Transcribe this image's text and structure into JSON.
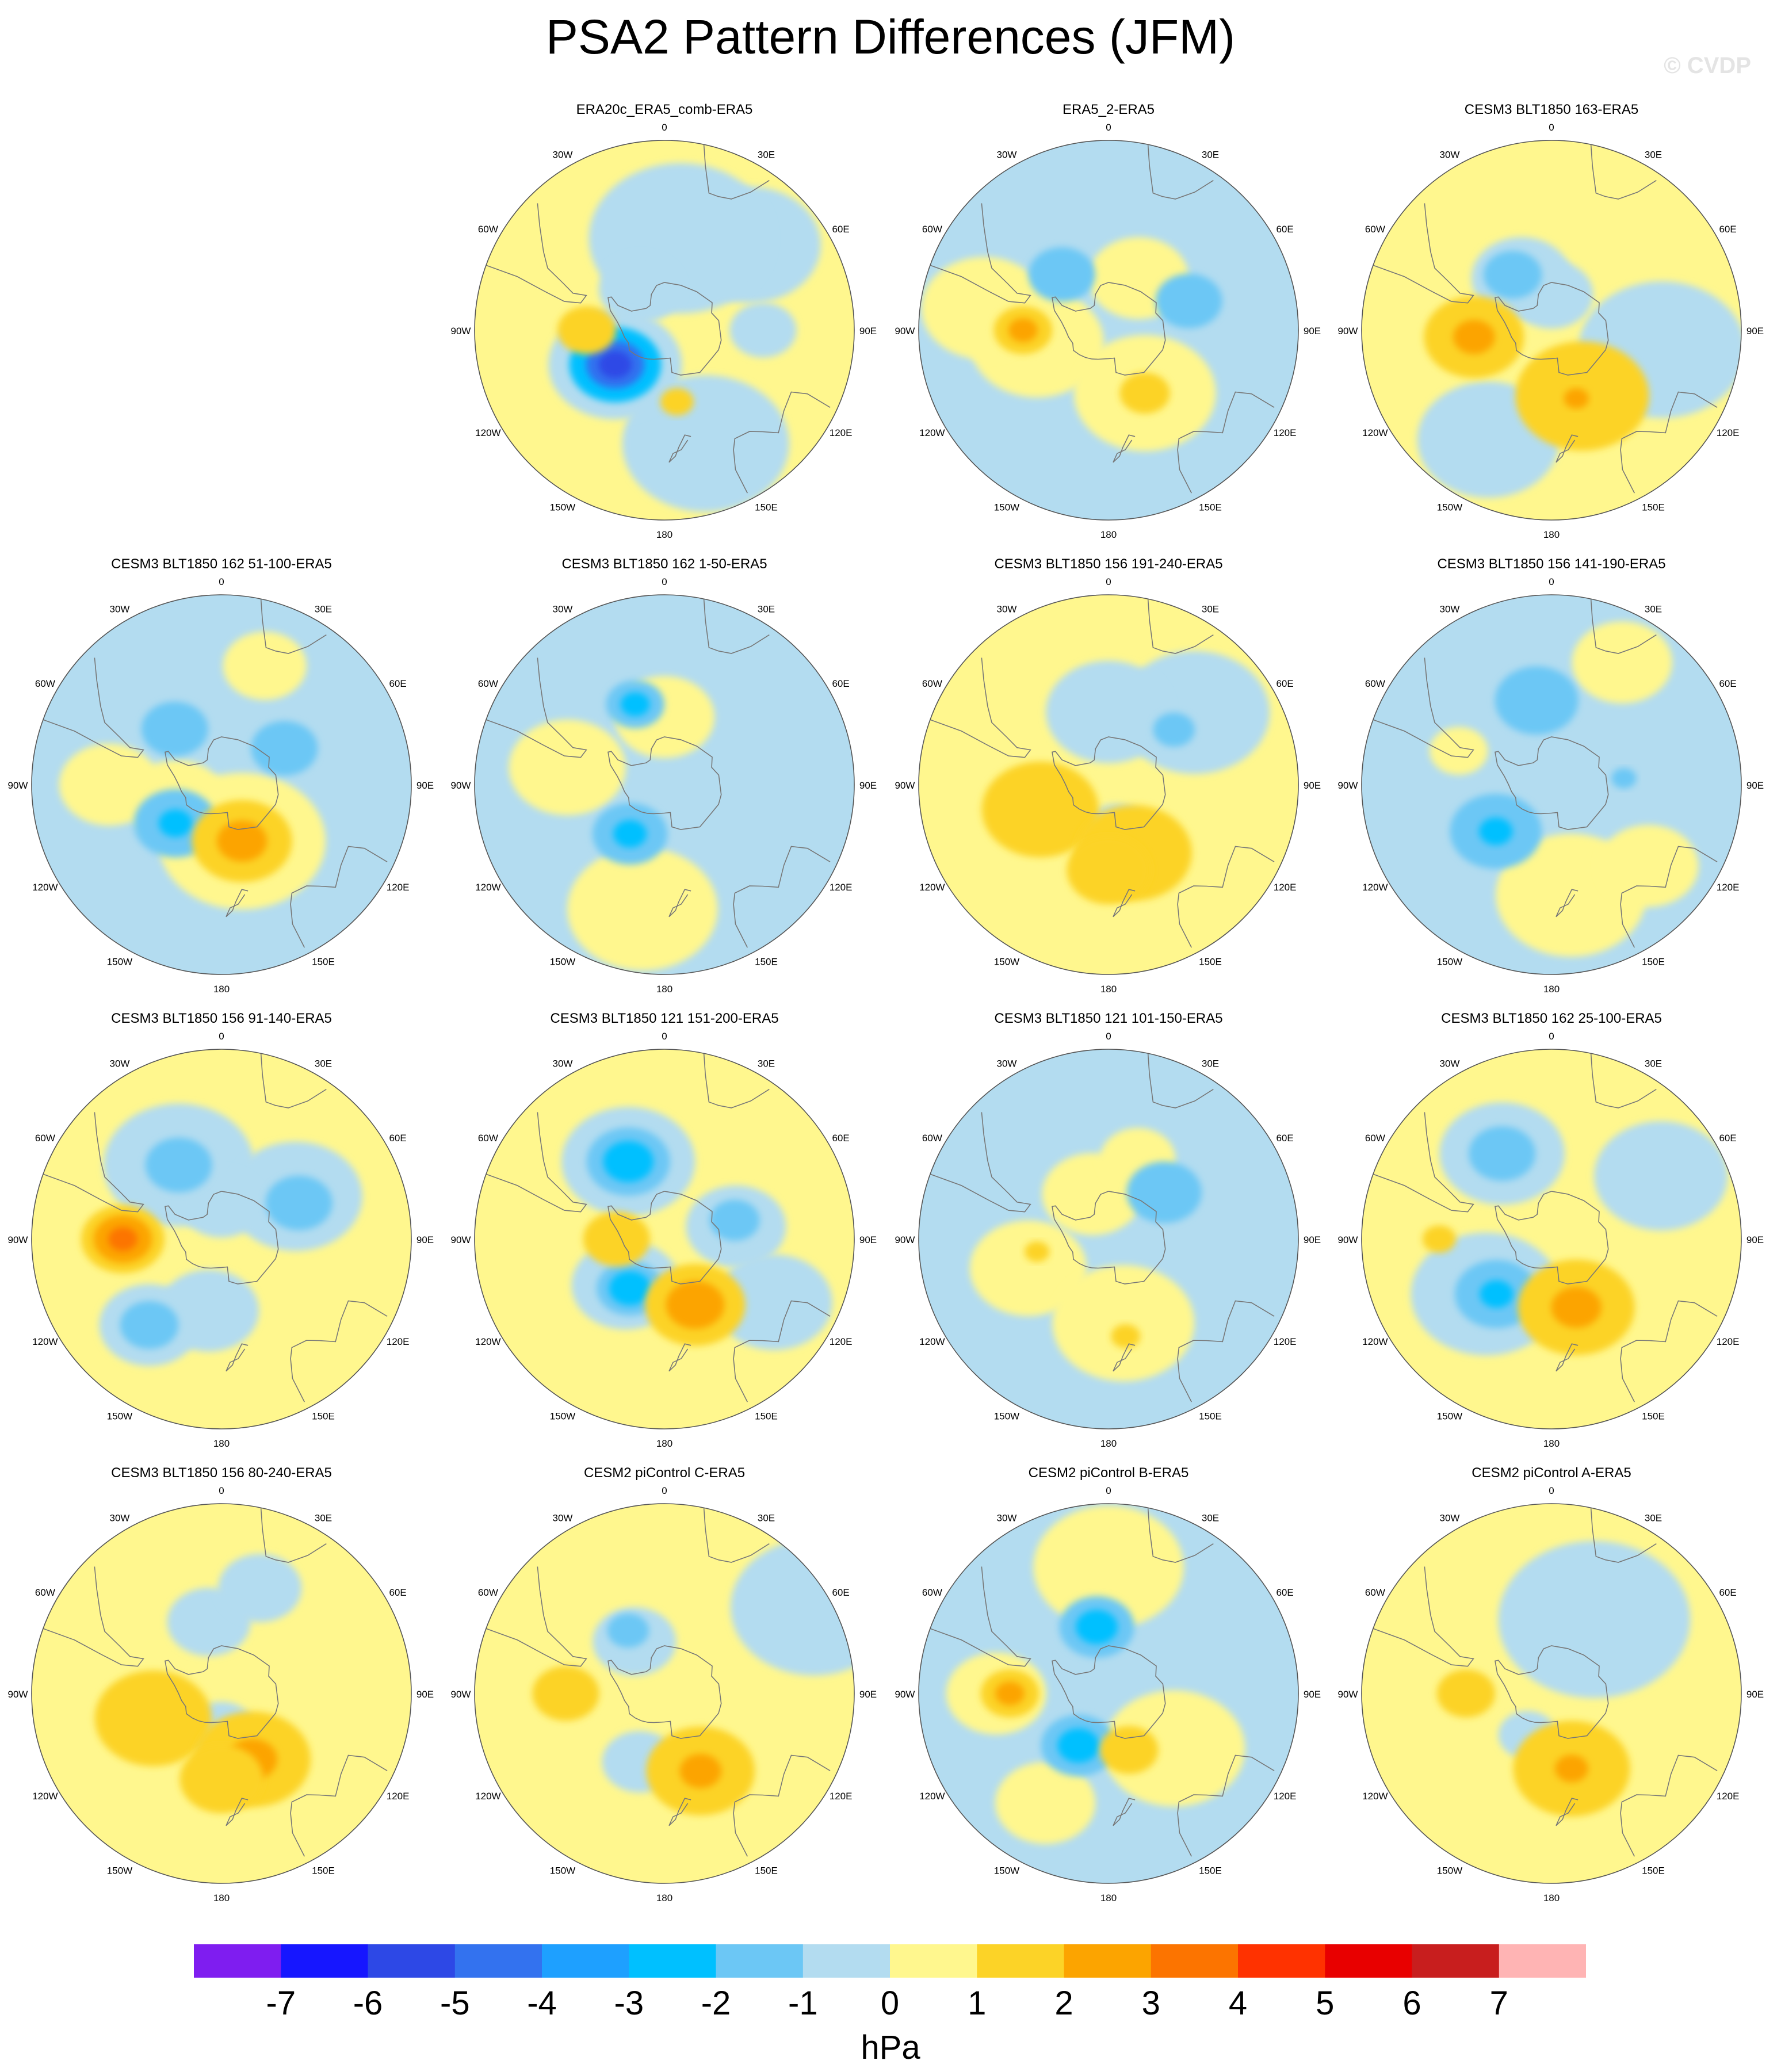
{
  "title": "PSA2 Pattern Differences (JFM)",
  "watermark": "© CVDP",
  "colors": {
    "yellow": "#fff78e",
    "lightblue": "#b3dcf0",
    "ocean_outline": "#777777",
    "levels": [
      "#7f1df0",
      "#1616ff",
      "#2d48e6",
      "#3372ef",
      "#1ea0ff",
      "#00c0ff",
      "#6cc7f5",
      "#b3dcf0",
      "#fff78e",
      "#fcd327",
      "#fca400",
      "#fc7400",
      "#ff3200",
      "#e80000",
      "#c81e1e",
      "#ffb4b4"
    ]
  },
  "map": {
    "projection": "south polar stereographic",
    "lon_labels": [
      "0",
      "30E",
      "60E",
      "90E",
      "120E",
      "150E",
      "180",
      "150W",
      "120W",
      "90W",
      "60W",
      "30W"
    ]
  },
  "panels": [
    {
      "title": "ERA20c_ERA5_comb-ERA5",
      "base": "yellow",
      "blobs": [
        {
          "lon": 45,
          "lat": -42,
          "r": 0.17,
          "v": -0.5
        },
        {
          "lon": 10,
          "lat": -52,
          "r": 0.22,
          "v": -0.5
        },
        {
          "lon": 160,
          "lat": -42,
          "r": 0.2,
          "v": -0.5
        },
        {
          "lon": -30,
          "lat": -70,
          "r": 0.1,
          "v": -0.5
        },
        {
          "lon": 90,
          "lat": -50,
          "r": 0.08,
          "v": -0.5
        },
        {
          "lon": -125,
          "lat": -65,
          "r": 0.16,
          "v": -0.5
        },
        {
          "lon": -125,
          "lat": -65,
          "r": 0.11,
          "v": -2.5
        },
        {
          "lon": -125,
          "lat": -65,
          "r": 0.07,
          "v": -4.5
        },
        {
          "lon": -125,
          "lat": -65,
          "r": 0.04,
          "v": -5.5
        },
        {
          "lon": -90,
          "lat": -58,
          "r": 0.07,
          "v": 1.5
        },
        {
          "lon": 170,
          "lat": -60,
          "r": 0.04,
          "v": 1.5
        }
      ]
    },
    {
      "title": "ERA5_2-ERA5",
      "base": "lightblue",
      "blobs": [
        {
          "lon": -100,
          "lat": -60,
          "r": 0.16,
          "v": 0.5
        },
        {
          "lon": 150,
          "lat": -60,
          "r": 0.17,
          "v": 0.5
        },
        {
          "lon": 30,
          "lat": -65,
          "r": 0.12,
          "v": 0.5
        },
        {
          "lon": -80,
          "lat": -40,
          "r": 0.15,
          "v": 0.5
        },
        {
          "lon": -90,
          "lat": -55,
          "r": 0.07,
          "v": 1.5
        },
        {
          "lon": -90,
          "lat": -55,
          "r": 0.035,
          "v": 2.5
        },
        {
          "lon": 150,
          "lat": -60,
          "r": 0.06,
          "v": 1.5
        },
        {
          "lon": -40,
          "lat": -60,
          "r": 0.08,
          "v": -1.5
        },
        {
          "lon": 70,
          "lat": -55,
          "r": 0.08,
          "v": -1.5
        }
      ]
    },
    {
      "title": "CESM3 BLT1850 163-ERA5",
      "base": "yellow",
      "blobs": [
        {
          "lon": 100,
          "lat": -45,
          "r": 0.2,
          "v": -0.5
        },
        {
          "lon": -150,
          "lat": -40,
          "r": 0.17,
          "v": -0.5
        },
        {
          "lon": -30,
          "lat": -65,
          "r": 0.12,
          "v": -0.5
        },
        {
          "lon": 0,
          "lat": -75,
          "r": 0.1,
          "v": -0.5
        },
        {
          "lon": -35,
          "lat": -62,
          "r": 0.07,
          "v": -1.5
        },
        {
          "lon": -95,
          "lat": -58,
          "r": 0.12,
          "v": 1.5
        },
        {
          "lon": -95,
          "lat": -58,
          "r": 0.05,
          "v": 2.5
        },
        {
          "lon": 155,
          "lat": -60,
          "r": 0.16,
          "v": 1.5
        },
        {
          "lon": 160,
          "lat": -60,
          "r": 0.03,
          "v": 2.5
        }
      ]
    },
    {
      "title": "CESM3 BLT1850 162 51-100-ERA5",
      "base": "lightblue",
      "blobs": [
        {
          "lon": -110,
          "lat": -70,
          "r": 0.12,
          "v": 0.5
        },
        {
          "lon": 160,
          "lat": -65,
          "r": 0.2,
          "v": 0.5
        },
        {
          "lon": -90,
          "lat": -45,
          "r": 0.12,
          "v": 0.5
        },
        {
          "lon": 20,
          "lat": -40,
          "r": 0.1,
          "v": 0.5
        },
        {
          "lon": -40,
          "lat": -60,
          "r": 0.08,
          "v": -1.5
        },
        {
          "lon": 60,
          "lat": -60,
          "r": 0.08,
          "v": -1.5
        },
        {
          "lon": -130,
          "lat": -65,
          "r": 0.1,
          "v": -1.5
        },
        {
          "lon": -130,
          "lat": -65,
          "r": 0.04,
          "v": -2.5
        },
        {
          "lon": 160,
          "lat": -65,
          "r": 0.12,
          "v": 1.5
        },
        {
          "lon": 160,
          "lat": -65,
          "r": 0.06,
          "v": 2.5
        }
      ]
    },
    {
      "title": "CESM3 BLT1850 162 1-50-ERA5",
      "base": "lightblue",
      "blobs": [
        {
          "lon": -170,
          "lat": -40,
          "r": 0.18,
          "v": 0.5
        },
        {
          "lon": -80,
          "lat": -50,
          "r": 0.14,
          "v": 0.5
        },
        {
          "lon": 0,
          "lat": -62,
          "r": 0.12,
          "v": 0.5
        },
        {
          "lon": -20,
          "lat": -55,
          "r": 0.07,
          "v": -1.5
        },
        {
          "lon": -20,
          "lat": -55,
          "r": 0.035,
          "v": -2.5
        },
        {
          "lon": -145,
          "lat": -65,
          "r": 0.09,
          "v": -1.5
        },
        {
          "lon": -145,
          "lat": -65,
          "r": 0.04,
          "v": -2.5
        }
      ]
    },
    {
      "title": "CESM3 BLT1850 156 191-240-ERA5",
      "base": "yellow",
      "blobs": [
        {
          "lon": 50,
          "lat": -45,
          "r": 0.18,
          "v": -0.5
        },
        {
          "lon": 0,
          "lat": -60,
          "r": 0.15,
          "v": -0.5
        },
        {
          "lon": 170,
          "lat": -70,
          "r": 0.08,
          "v": -0.5
        },
        {
          "lon": 50,
          "lat": -55,
          "r": 0.05,
          "v": -1.5
        },
        {
          "lon": -110,
          "lat": -60,
          "r": 0.14,
          "v": 1.5
        },
        {
          "lon": 160,
          "lat": -60,
          "r": 0.14,
          "v": 1.5
        },
        {
          "lon": 180,
          "lat": -55,
          "r": 0.1,
          "v": 1.5
        }
      ]
    },
    {
      "title": "CESM3 BLT1850 156 141-190-ERA5",
      "base": "lightblue",
      "blobs": [
        {
          "lon": 30,
          "lat": -35,
          "r": 0.12,
          "v": 0.5
        },
        {
          "lon": 170,
          "lat": -45,
          "r": 0.18,
          "v": 0.5
        },
        {
          "lon": 130,
          "lat": -40,
          "r": 0.12,
          "v": 0.5
        },
        {
          "lon": -70,
          "lat": -50,
          "r": 0.07,
          "v": 0.5
        },
        {
          "lon": -10,
          "lat": -55,
          "r": 0.1,
          "v": -1.5
        },
        {
          "lon": -130,
          "lat": -60,
          "r": 0.11,
          "v": -1.5
        },
        {
          "lon": -130,
          "lat": -60,
          "r": 0.04,
          "v": -2.5
        },
        {
          "lon": 85,
          "lat": -60,
          "r": 0.03,
          "v": -1.5
        }
      ]
    },
    {
      "title": "CESM3 BLT1850 156 91-140-ERA5",
      "base": "yellow",
      "blobs": [
        {
          "lon": -30,
          "lat": -55,
          "r": 0.18,
          "v": -0.5
        },
        {
          "lon": 60,
          "lat": -55,
          "r": 0.16,
          "v": -0.5
        },
        {
          "lon": -140,
          "lat": -45,
          "r": 0.12,
          "v": -0.5
        },
        {
          "lon": -170,
          "lat": -60,
          "r": 0.12,
          "v": -0.5
        },
        {
          "lon": 0,
          "lat": -75,
          "r": 0.1,
          "v": -0.5
        },
        {
          "lon": -30,
          "lat": -55,
          "r": 0.08,
          "v": -1.5
        },
        {
          "lon": 65,
          "lat": -55,
          "r": 0.08,
          "v": -1.5
        },
        {
          "lon": -140,
          "lat": -45,
          "r": 0.07,
          "v": -1.5
        },
        {
          "lon": -90,
          "lat": -50,
          "r": 0.1,
          "v": 1.5
        },
        {
          "lon": -90,
          "lat": -50,
          "r": 0.07,
          "v": 2.5
        },
        {
          "lon": -90,
          "lat": -50,
          "r": 0.035,
          "v": 3.5
        }
      ]
    },
    {
      "title": "CESM3 BLT1850 121 151-200-ERA5",
      "base": "yellow",
      "blobs": [
        {
          "lon": -25,
          "lat": -55,
          "r": 0.16,
          "v": -0.5
        },
        {
          "lon": -140,
          "lat": -65,
          "r": 0.13,
          "v": -0.5
        },
        {
          "lon": 80,
          "lat": -60,
          "r": 0.12,
          "v": -0.5
        },
        {
          "lon": 120,
          "lat": -40,
          "r": 0.14,
          "v": -0.5
        },
        {
          "lon": -25,
          "lat": -55,
          "r": 0.1,
          "v": -1.5
        },
        {
          "lon": -25,
          "lat": -55,
          "r": 0.06,
          "v": -2.5
        },
        {
          "lon": -145,
          "lat": -65,
          "r": 0.08,
          "v": -1.5
        },
        {
          "lon": -145,
          "lat": -65,
          "r": 0.05,
          "v": -2.5
        },
        {
          "lon": 75,
          "lat": -60,
          "r": 0.06,
          "v": -1.5
        },
        {
          "lon": -90,
          "lat": -70,
          "r": 0.08,
          "v": 1.5
        },
        {
          "lon": 155,
          "lat": -60,
          "r": 0.12,
          "v": 1.5
        },
        {
          "lon": 155,
          "lat": -60,
          "r": 0.07,
          "v": 2.5
        }
      ]
    },
    {
      "title": "CESM3 BLT1850 121 101-150-ERA5",
      "base": "lightblue",
      "blobs": [
        {
          "lon": -110,
          "lat": -55,
          "r": 0.14,
          "v": 0.5
        },
        {
          "lon": 170,
          "lat": -55,
          "r": 0.17,
          "v": 0.5
        },
        {
          "lon": -20,
          "lat": -70,
          "r": 0.12,
          "v": 0.5
        },
        {
          "lon": 20,
          "lat": -55,
          "r": 0.09,
          "v": 0.5
        },
        {
          "lon": 50,
          "lat": -60,
          "r": 0.09,
          "v": -1.5
        },
        {
          "lon": -100,
          "lat": -60,
          "r": 0.03,
          "v": 1.5
        },
        {
          "lon": 170,
          "lat": -50,
          "r": 0.035,
          "v": 1.5
        }
      ]
    },
    {
      "title": "CESM3 BLT1850 162 25-100-ERA5",
      "base": "yellow",
      "blobs": [
        {
          "lon": -30,
          "lat": -50,
          "r": 0.15,
          "v": -0.5
        },
        {
          "lon": 60,
          "lat": -40,
          "r": 0.16,
          "v": -0.5
        },
        {
          "lon": -130,
          "lat": -55,
          "r": 0.18,
          "v": -0.5
        },
        {
          "lon": -30,
          "lat": -50,
          "r": 0.08,
          "v": -1.5
        },
        {
          "lon": -135,
          "lat": -58,
          "r": 0.1,
          "v": -1.5
        },
        {
          "lon": -135,
          "lat": -58,
          "r": 0.04,
          "v": -2.5
        },
        {
          "lon": 160,
          "lat": -60,
          "r": 0.14,
          "v": 1.5
        },
        {
          "lon": 160,
          "lat": -60,
          "r": 0.06,
          "v": 2.5
        },
        {
          "lon": -90,
          "lat": -45,
          "r": 0.04,
          "v": 1.5
        }
      ]
    },
    {
      "title": "CESM3 BLT1850 156 80-240-ERA5",
      "base": "yellow",
      "blobs": [
        {
          "lon": -10,
          "lat": -60,
          "r": 0.1,
          "v": -0.5
        },
        {
          "lon": 20,
          "lat": -45,
          "r": 0.1,
          "v": -0.5
        },
        {
          "lon": 180,
          "lat": -75,
          "r": 0.08,
          "v": -0.5
        },
        {
          "lon": -110,
          "lat": -60,
          "r": 0.14,
          "v": 1.5
        },
        {
          "lon": 155,
          "lat": -60,
          "r": 0.14,
          "v": 1.5
        },
        {
          "lon": 155,
          "lat": -60,
          "r": 0.06,
          "v": 2.5
        },
        {
          "lon": 180,
          "lat": -55,
          "r": 0.1,
          "v": 1.5
        }
      ]
    },
    {
      "title": "CESM2 piControl C-ERA5",
      "base": "yellow",
      "blobs": [
        {
          "lon": 60,
          "lat": -25,
          "r": 0.2,
          "v": -0.5
        },
        {
          "lon": -30,
          "lat": -65,
          "r": 0.1,
          "v": -0.5
        },
        {
          "lon": -160,
          "lat": -60,
          "r": 0.09,
          "v": -0.5
        },
        {
          "lon": -30,
          "lat": -60,
          "r": 0.05,
          "v": -1.5
        },
        {
          "lon": -90,
          "lat": -50,
          "r": 0.08,
          "v": 1.5
        },
        {
          "lon": 155,
          "lat": -55,
          "r": 0.13,
          "v": 1.5
        },
        {
          "lon": 155,
          "lat": -55,
          "r": 0.05,
          "v": 2.5
        }
      ]
    },
    {
      "title": "CESM2 piControl B-ERA5",
      "base": "lightblue",
      "blobs": [
        {
          "lon": -90,
          "lat": -45,
          "r": 0.12,
          "v": 0.5
        },
        {
          "lon": 130,
          "lat": -55,
          "r": 0.17,
          "v": 0.5
        },
        {
          "lon": 0,
          "lat": -40,
          "r": 0.18,
          "v": 0.5
        },
        {
          "lon": -150,
          "lat": -40,
          "r": 0.12,
          "v": 0.5
        },
        {
          "lon": -10,
          "lat": -62,
          "r": 0.09,
          "v": -1.5
        },
        {
          "lon": -10,
          "lat": -62,
          "r": 0.05,
          "v": -2.5
        },
        {
          "lon": -150,
          "lat": -65,
          "r": 0.09,
          "v": -1.5
        },
        {
          "lon": -150,
          "lat": -65,
          "r": 0.05,
          "v": -2.5
        },
        {
          "lon": -90,
          "lat": -50,
          "r": 0.07,
          "v": 1.5
        },
        {
          "lon": -90,
          "lat": -50,
          "r": 0.035,
          "v": 2.5
        },
        {
          "lon": 160,
          "lat": -65,
          "r": 0.07,
          "v": 1.5
        }
      ]
    },
    {
      "title": "CESM2 piControl A-ERA5",
      "base": "yellow",
      "blobs": [
        {
          "lon": 30,
          "lat": -55,
          "r": 0.23,
          "v": -0.5
        },
        {
          "lon": -150,
          "lat": -70,
          "r": 0.07,
          "v": -0.5
        },
        {
          "lon": 170,
          "lat": -50,
          "r": 0.03,
          "v": -0.5
        },
        {
          "lon": -90,
          "lat": -55,
          "r": 0.07,
          "v": 1.5
        },
        {
          "lon": 165,
          "lat": -58,
          "r": 0.14,
          "v": 1.5
        },
        {
          "lon": 165,
          "lat": -58,
          "r": 0.04,
          "v": 2.5
        }
      ]
    }
  ],
  "colorbar": {
    "labels": [
      "-7",
      "-6",
      "-5",
      "-4",
      "-3",
      "-2",
      "-1",
      "0",
      "1",
      "2",
      "3",
      "4",
      "5",
      "6",
      "7"
    ],
    "unit": "hPa"
  }
}
